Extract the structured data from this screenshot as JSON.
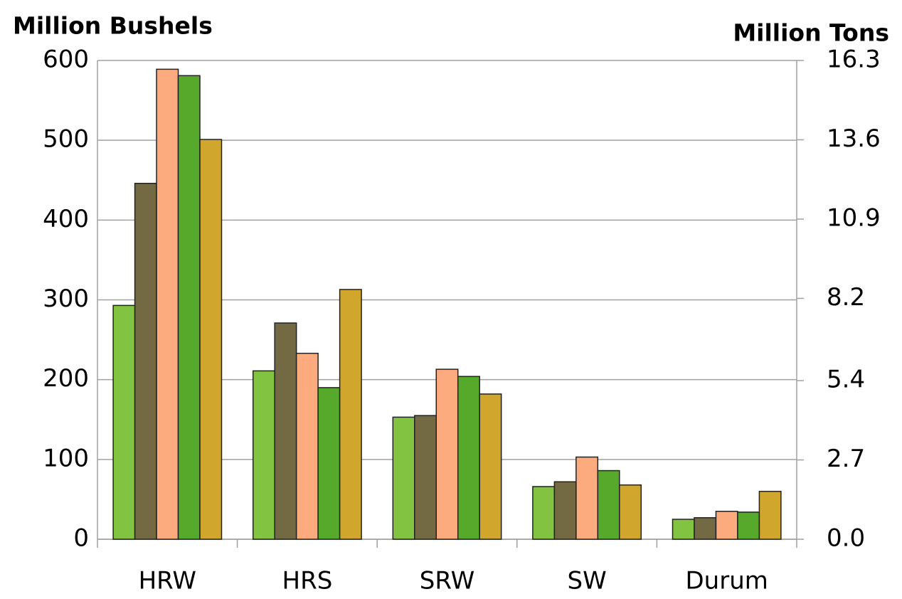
{
  "chart_data": {
    "type": "bar",
    "ylabel": "Million Bushels",
    "y2label": "Million Tons",
    "categories": [
      "HRW",
      "HRS",
      "SRW",
      "SW",
      "Durum"
    ],
    "series": [
      {
        "color": "#82c341",
        "values": [
          293,
          211,
          153,
          66,
          25
        ]
      },
      {
        "color": "#736a44",
        "values": [
          446,
          271,
          155,
          72,
          27
        ]
      },
      {
        "color": "#fbab7e",
        "values": [
          589,
          233,
          213,
          103,
          35
        ]
      },
      {
        "color": "#57a92b",
        "values": [
          581,
          190,
          204,
          86,
          34
        ]
      },
      {
        "color": "#d1a62c",
        "values": [
          501,
          313,
          182,
          68,
          60
        ]
      }
    ],
    "ylim": [
      0,
      600
    ],
    "yticks": [
      0,
      100,
      200,
      300,
      400,
      500,
      600
    ],
    "y2lim": [
      0,
      16.3
    ],
    "y2ticks": [
      {
        "value": 0,
        "label": "0.0"
      },
      2.7,
      5.4,
      8.2,
      10.9,
      13.6,
      16.3
    ],
    "grid": true
  }
}
